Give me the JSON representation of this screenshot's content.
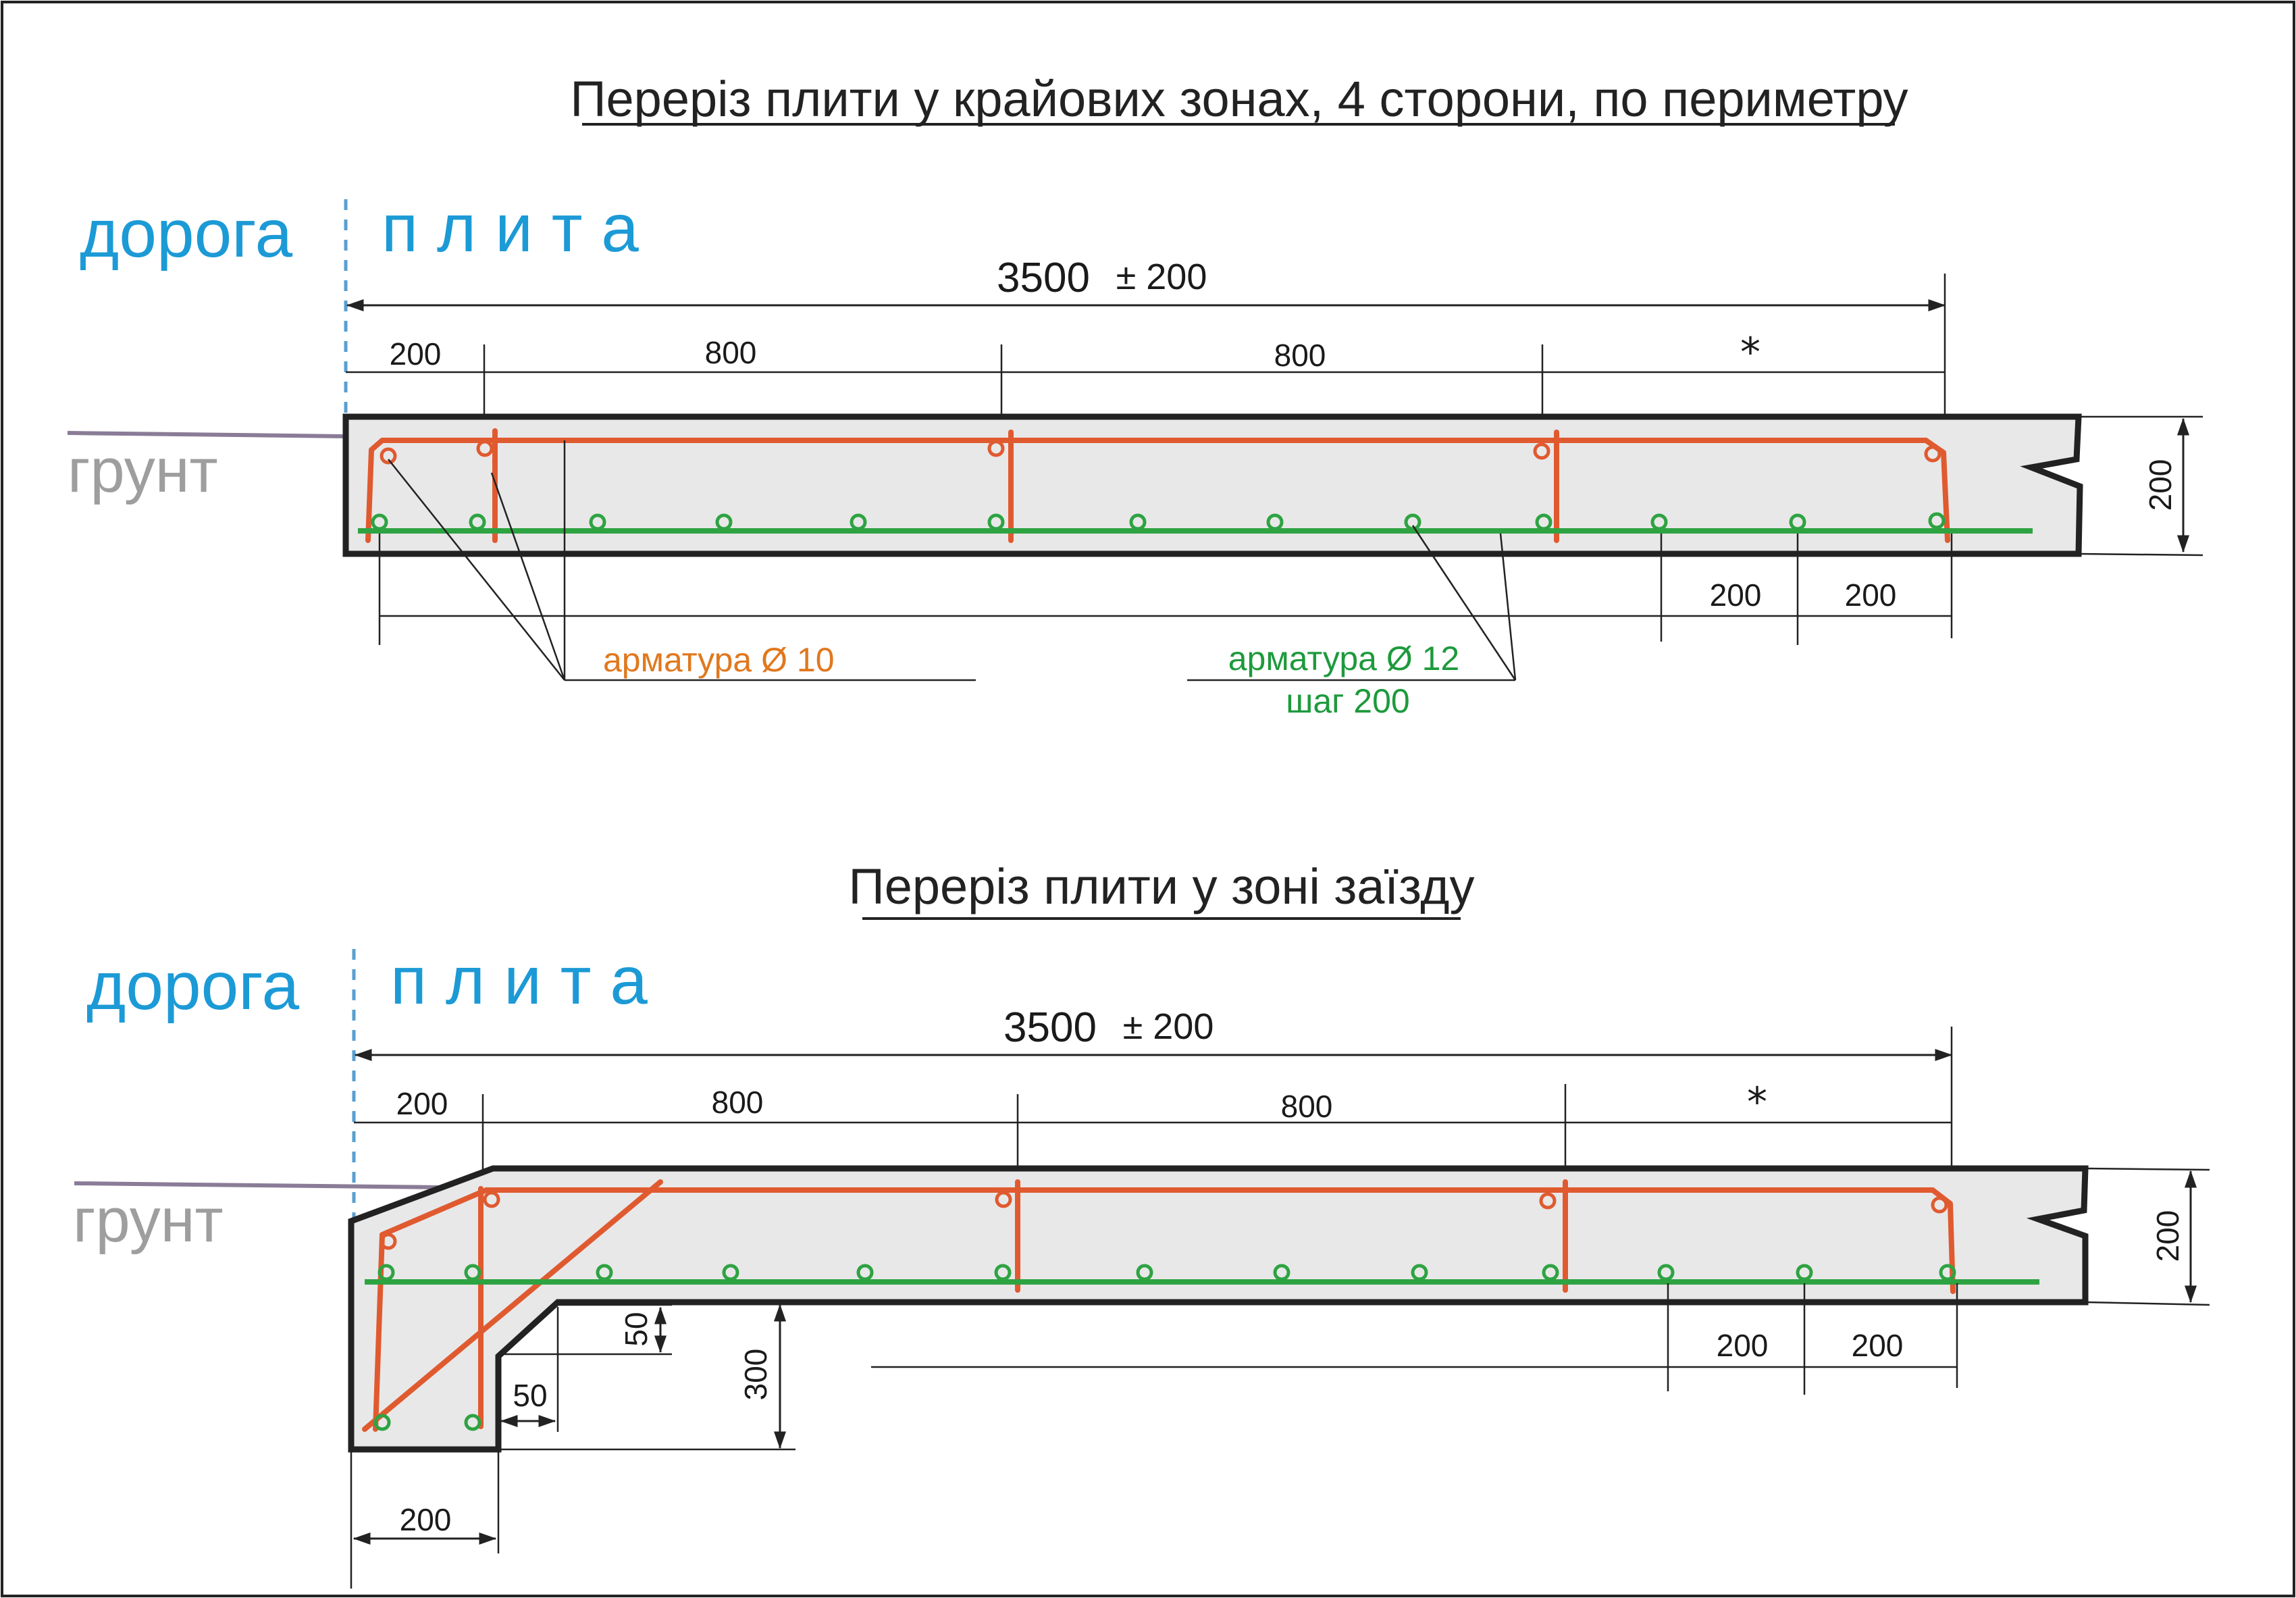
{
  "section1": {
    "title": "Переріз плити у крайових зонах,  4 сторони,  по периметру",
    "zone_road": "дорога",
    "zone_slab": "п л и т а",
    "ground": "грунт",
    "total_width": "3500",
    "tolerance": "± 200",
    "dims_top": [
      "200",
      "800",
      "800",
      "*"
    ],
    "thickness": "200",
    "dims_bottom": [
      "200",
      "200"
    ],
    "rebar10_label": "арматура Ø 10",
    "rebar12_label": "арматура Ø 12",
    "rebar12_pitch": "шаг 200"
  },
  "section2": {
    "title": "Переріз плити у зоні заїзду",
    "zone_road": "дорога",
    "zone_slab": "п л и т а",
    "ground": "грунт",
    "total_width": "3500",
    "tolerance": "± 200",
    "dims_top": [
      "200",
      "800",
      "800",
      "*"
    ],
    "thickness": "200",
    "dims_bottom": [
      "200",
      "200"
    ],
    "chamfer_v": "50",
    "chamfer_h": "50",
    "edge_depth": "300",
    "edge_width": "200"
  },
  "colors": {
    "rebar10": "#e05a30",
    "rebar12": "#2ea342",
    "zone_text": "#1c9ad6",
    "ground_text": "#9e9e9e",
    "slab_fill": "#e8e8e8"
  }
}
